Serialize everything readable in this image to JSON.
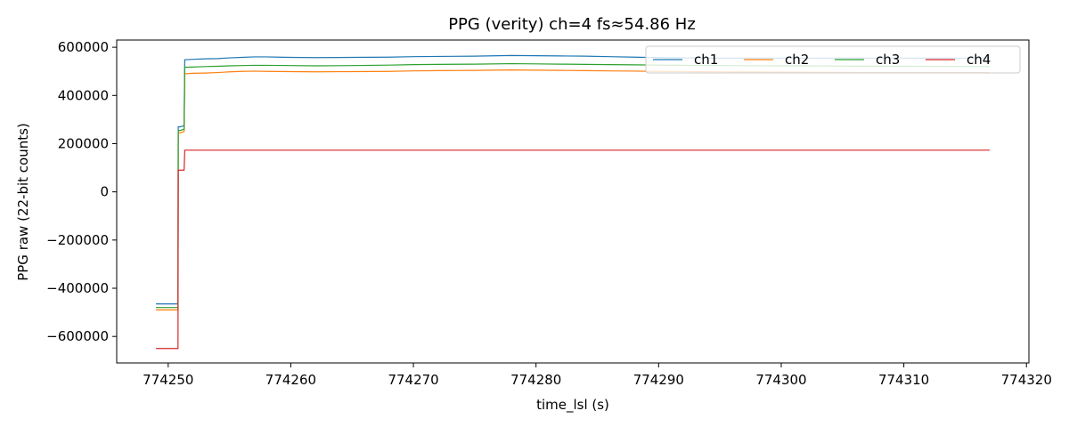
{
  "chart_data": {
    "type": "line",
    "title": "PPG (verity)  ch=4  fs≈54.86 Hz",
    "xlabel": "time_lsl (s)",
    "ylabel": "PPG raw (22-bit counts)",
    "xlim": [
      774245.8,
      774320.2
    ],
    "ylim": [
      -710000,
      630000
    ],
    "xticks": [
      774250,
      774260,
      774270,
      774280,
      774290,
      774300,
      774310,
      774320
    ],
    "yticks": [
      -600000,
      -400000,
      -200000,
      0,
      200000,
      400000,
      600000
    ],
    "grid": false,
    "legend": {
      "placement": "top-right",
      "columns": 4
    },
    "series": [
      {
        "name": "ch1",
        "color": "#1f77b4",
        "x": [
          774249.0,
          774250.8,
          774250.82,
          774251.0,
          774251.3,
          774251.35,
          774252,
          774253,
          774254,
          774255,
          774256,
          774257,
          774258,
          774259,
          774260,
          774262,
          774265,
          774268,
          774270,
          774272,
          774275,
          774278,
          774280,
          774282,
          774284,
          774286,
          774288,
          774290,
          774292,
          774295,
          774300,
          774305,
          774310,
          774317
        ],
        "y": [
          -465000,
          -465000,
          270000,
          270000,
          275000,
          548000,
          550000,
          552000,
          553000,
          556000,
          558000,
          560000,
          560000,
          559000,
          558000,
          557000,
          558000,
          559000,
          561000,
          562000,
          563000,
          566000,
          565000,
          564000,
          563000,
          561000,
          559000,
          557000,
          556000,
          555000,
          555000,
          555000,
          555000,
          555000
        ]
      },
      {
        "name": "ch2",
        "color": "#ff7f0e",
        "x": [
          774249.0,
          774250.8,
          774250.82,
          774251.0,
          774251.3,
          774251.35,
          774252,
          774253,
          774254,
          774255,
          774256,
          774257,
          774258,
          774260,
          774262,
          774265,
          774268,
          774270,
          774272,
          774275,
          774278,
          774280,
          774282,
          774284,
          774286,
          774288,
          774290,
          774292,
          774295,
          774300,
          774305,
          774310,
          774317
        ],
        "y": [
          -490000,
          -490000,
          245000,
          245000,
          250000,
          490000,
          492000,
          493000,
          495000,
          498000,
          500000,
          501000,
          500000,
          499000,
          498000,
          499000,
          500000,
          502000,
          503000,
          504000,
          506000,
          505000,
          504000,
          503000,
          502000,
          501000,
          500000,
          499000,
          498000,
          497000,
          496000,
          495000,
          495000
        ]
      },
      {
        "name": "ch3",
        "color": "#2ca02c",
        "x": [
          774249.0,
          774250.8,
          774250.82,
          774251.0,
          774251.3,
          774251.35,
          774252,
          774253,
          774254,
          774255,
          774256,
          774257,
          774258,
          774260,
          774262,
          774265,
          774268,
          774270,
          774272,
          774275,
          774278,
          774280,
          774282,
          774284,
          774286,
          774288,
          774290,
          774292,
          774295,
          774300,
          774305,
          774310,
          774317
        ],
        "y": [
          -480000,
          -480000,
          255000,
          255000,
          260000,
          517000,
          518000,
          520000,
          521000,
          523000,
          524000,
          525000,
          525000,
          524000,
          523000,
          524000,
          526000,
          528000,
          529000,
          530000,
          532000,
          531000,
          530000,
          529000,
          528000,
          527000,
          526000,
          525000,
          524000,
          523000,
          522000,
          521000,
          520000
        ]
      },
      {
        "name": "ch4",
        "color": "#d62728",
        "x": [
          774249.0,
          774250.8,
          774250.82,
          774251.0,
          774251.3,
          774251.35,
          774252,
          774260,
          774270,
          774280,
          774290,
          774300,
          774310,
          774317
        ],
        "y": [
          -650000,
          -650000,
          90000,
          90000,
          90000,
          173000,
          173000,
          173000,
          173000,
          173000,
          173000,
          173000,
          173000,
          173000
        ]
      }
    ]
  }
}
